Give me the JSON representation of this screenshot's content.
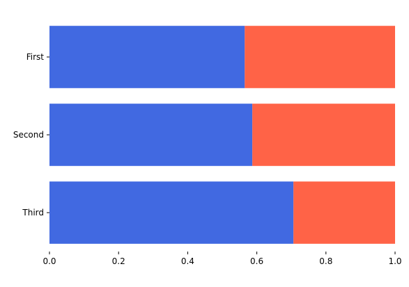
{
  "chart_data": {
    "type": "bar",
    "orientation": "horizontal",
    "stacked": true,
    "title": "",
    "xlabel": "",
    "ylabel": "",
    "categories": [
      "First",
      "Second",
      "Third"
    ],
    "series": [
      {
        "values": [
          0.565,
          0.587,
          0.706
        ],
        "color": "#4169E1"
      },
      {
        "values": [
          0.435,
          0.413,
          0.294
        ],
        "color": "#FF6347"
      }
    ],
    "xlim": [
      0,
      1
    ],
    "xticks": [
      "0.0",
      "0.2",
      "0.4",
      "0.6",
      "0.8",
      "1.0"
    ],
    "grid": false,
    "legend": "none"
  }
}
